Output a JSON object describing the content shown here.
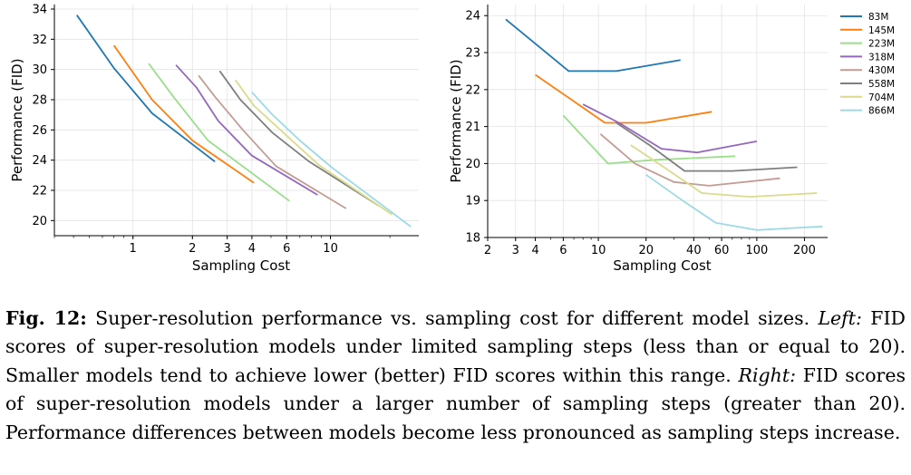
{
  "chart_data": [
    {
      "type": "line",
      "panel": "left",
      "xlabel": "Sampling Cost",
      "ylabel": "Performance (FID)",
      "x_scale": "log",
      "xlim": [
        0.4,
        28
      ],
      "ylim": [
        19.0,
        34.3
      ],
      "x_ticks": [
        1,
        2,
        3,
        4,
        6,
        10
      ],
      "y_ticks": [
        20,
        22,
        24,
        26,
        28,
        30,
        32,
        34
      ],
      "grid": true,
      "series": [
        {
          "name": "83M",
          "color": "#1f77b4",
          "x": [
            0.52,
            0.8,
            1.25,
            2.6
          ],
          "y": [
            33.6,
            30.1,
            27.1,
            23.9
          ]
        },
        {
          "name": "145M",
          "color": "#ff7f0e",
          "x": [
            0.8,
            1.25,
            2.0,
            4.1
          ],
          "y": [
            31.6,
            28.0,
            25.3,
            22.5
          ]
        },
        {
          "name": "223M",
          "color": "#98df8a",
          "x": [
            1.2,
            1.6,
            2.4,
            6.2
          ],
          "y": [
            30.4,
            28.2,
            25.3,
            21.3
          ]
        },
        {
          "name": "318M",
          "color": "#9467bd",
          "x": [
            1.65,
            2.1,
            2.7,
            4.0,
            8.6
          ],
          "y": [
            30.3,
            28.8,
            26.6,
            24.3,
            21.7
          ]
        },
        {
          "name": "430M",
          "color": "#c49c94",
          "x": [
            2.15,
            2.6,
            3.6,
            5.3,
            12.0
          ],
          "y": [
            29.6,
            28.2,
            26.0,
            23.6,
            20.8
          ]
        },
        {
          "name": "558M",
          "color": "#7f7f7f",
          "x": [
            2.75,
            3.5,
            5.1,
            7.8,
            17.5
          ],
          "y": [
            29.9,
            28.0,
            25.8,
            23.9,
            21.0
          ]
        },
        {
          "name": "704M",
          "color": "#dbdb8d",
          "x": [
            3.3,
            4.1,
            5.8,
            8.7,
            20.5
          ],
          "y": [
            29.3,
            27.6,
            25.8,
            23.7,
            20.4
          ]
        },
        {
          "name": "866M",
          "color": "#9edae5",
          "x": [
            4.0,
            5.0,
            7.0,
            10.2,
            25.5
          ],
          "y": [
            28.5,
            27.1,
            25.3,
            23.5,
            19.6
          ]
        }
      ]
    },
    {
      "type": "line",
      "panel": "right",
      "xlabel": "Sampling Cost",
      "ylabel": "Performance (FID)",
      "x_scale": "log",
      "xlim": [
        2,
        280
      ],
      "ylim": [
        18,
        24.3
      ],
      "x_ticks": [
        2,
        3,
        4,
        6,
        10,
        20,
        40,
        60,
        100,
        200
      ],
      "y_ticks": [
        18,
        19,
        20,
        21,
        22,
        23,
        24
      ],
      "grid": true,
      "legend": "top-right",
      "series": [
        {
          "name": "83M",
          "color": "#1f77b4",
          "x": [
            2.6,
            6.5,
            13.0,
            33.0
          ],
          "y": [
            23.9,
            22.5,
            22.5,
            22.8
          ]
        },
        {
          "name": "145M",
          "color": "#ff7f0e",
          "x": [
            4.0,
            11.0,
            20.0,
            52.0
          ],
          "y": [
            22.4,
            21.1,
            21.1,
            21.4
          ]
        },
        {
          "name": "223M",
          "color": "#98df8a",
          "x": [
            6.0,
            11.5,
            23.0,
            73.0
          ],
          "y": [
            21.3,
            20.0,
            20.1,
            20.2
          ]
        },
        {
          "name": "318M",
          "color": "#9467bd",
          "x": [
            8.0,
            13.5,
            25.0,
            42.0,
            100.0
          ],
          "y": [
            21.6,
            21.1,
            20.4,
            20.3,
            20.6
          ]
        },
        {
          "name": "430M",
          "color": "#c49c94",
          "x": [
            10.3,
            17.0,
            30.0,
            50.0,
            140.0
          ],
          "y": [
            20.8,
            20.0,
            19.5,
            19.4,
            19.6
          ]
        },
        {
          "name": "558M",
          "color": "#7f7f7f",
          "x": [
            13.0,
            21.0,
            35.0,
            70.0,
            180.0
          ],
          "y": [
            21.1,
            20.5,
            19.8,
            19.8,
            19.9
          ]
        },
        {
          "name": "704M",
          "color": "#dbdb8d",
          "x": [
            16.0,
            26.0,
            45.0,
            90.0,
            240.0
          ],
          "y": [
            20.5,
            19.9,
            19.2,
            19.1,
            19.2
          ]
        },
        {
          "name": "866M",
          "color": "#9edae5",
          "x": [
            20.0,
            34.0,
            55.0,
            100.0,
            260.0
          ],
          "y": [
            19.7,
            19.0,
            18.4,
            18.2,
            18.3
          ]
        }
      ]
    }
  ],
  "caption": {
    "label": "Fig. 12:",
    "text_1": " Super-resolution performance vs. sampling cost for different model sizes. ",
    "term_left": "Left:",
    "text_2": " FID scores of super-resolution models under limited sampling steps (less than or equal to 20). Smaller models tend to achieve lower (better) FID scores within this range. ",
    "term_right": "Right:",
    "text_3": " FID scores of super-resolution models under a larger number of sampling steps (greater than 20). Performance differences between models become less pronounced as sampling steps increase."
  }
}
